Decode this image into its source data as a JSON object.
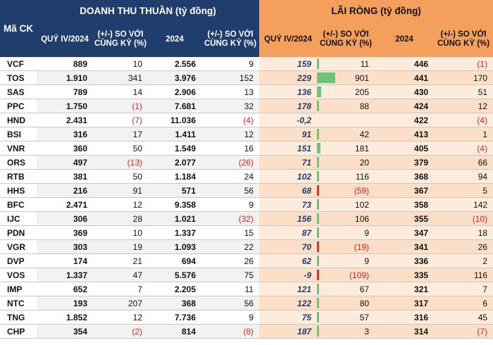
{
  "header": {
    "ticker_label": "Mã CK",
    "revenue_group": "DOANH THU THUẦN (tỷ đồng)",
    "profit_group": "LÃI RÒNG (tỷ đồng)",
    "columns": {
      "q4": "QUÝ IV/2024",
      "change_q4": "(+/-) SO VỚI CÙNG KỲ (%)",
      "year": "2024",
      "change_year": "(+/-) SO VỚI CÙNG KỲ (%)"
    }
  },
  "rows": [
    {
      "ticker": "VCF",
      "rev_q4": "889",
      "rev_q4_chg": "10",
      "rev_y": "2.556",
      "rev_y_chg": "9",
      "np_q4": "159",
      "np_q4_chg": "11",
      "np_y": "446",
      "np_y_chg": "(1)"
    },
    {
      "ticker": "TOS",
      "rev_q4": "1.910",
      "rev_q4_chg": "341",
      "rev_y": "3.976",
      "rev_y_chg": "152",
      "np_q4": "229",
      "np_q4_chg": "901",
      "np_y": "441",
      "np_y_chg": "170"
    },
    {
      "ticker": "SAS",
      "rev_q4": "789",
      "rev_q4_chg": "14",
      "rev_y": "2.906",
      "rev_y_chg": "13",
      "np_q4": "136",
      "np_q4_chg": "205",
      "np_y": "430",
      "np_y_chg": "51"
    },
    {
      "ticker": "PPC",
      "rev_q4": "1.750",
      "rev_q4_chg": "(1)",
      "rev_y": "7.681",
      "rev_y_chg": "32",
      "np_q4": "178",
      "np_q4_chg": "88",
      "np_y": "424",
      "np_y_chg": "12"
    },
    {
      "ticker": "HND",
      "rev_q4": "2.431",
      "rev_q4_chg": "(7)",
      "rev_y": "11.036",
      "rev_y_chg": "(4)",
      "np_q4": "-0,2",
      "np_q4_chg": "",
      "np_y": "422",
      "np_y_chg": "(4)"
    },
    {
      "ticker": "BSI",
      "rev_q4": "316",
      "rev_q4_chg": "17",
      "rev_y": "1.411",
      "rev_y_chg": "12",
      "np_q4": "91",
      "np_q4_chg": "42",
      "np_y": "413",
      "np_y_chg": "1"
    },
    {
      "ticker": "VNR",
      "rev_q4": "360",
      "rev_q4_chg": "50",
      "rev_y": "1.549",
      "rev_y_chg": "16",
      "np_q4": "151",
      "np_q4_chg": "181",
      "np_y": "405",
      "np_y_chg": "(4)"
    },
    {
      "ticker": "ORS",
      "rev_q4": "497",
      "rev_q4_chg": "(13)",
      "rev_y": "2.077",
      "rev_y_chg": "(26)",
      "np_q4": "71",
      "np_q4_chg": "20",
      "np_y": "379",
      "np_y_chg": "66"
    },
    {
      "ticker": "RTB",
      "rev_q4": "381",
      "rev_q4_chg": "50",
      "rev_y": "1.184",
      "rev_y_chg": "24",
      "np_q4": "102",
      "np_q4_chg": "116",
      "np_y": "368",
      "np_y_chg": "94"
    },
    {
      "ticker": "HHS",
      "rev_q4": "216",
      "rev_q4_chg": "91",
      "rev_y": "571",
      "rev_y_chg": "56",
      "np_q4": "68",
      "np_q4_chg": "(59)",
      "np_y": "367",
      "np_y_chg": "5"
    },
    {
      "ticker": "BFC",
      "rev_q4": "2.471",
      "rev_q4_chg": "12",
      "rev_y": "9.358",
      "rev_y_chg": "9",
      "np_q4": "73",
      "np_q4_chg": "102",
      "np_y": "358",
      "np_y_chg": "142"
    },
    {
      "ticker": "IJC",
      "rev_q4": "306",
      "rev_q4_chg": "28",
      "rev_y": "1.021",
      "rev_y_chg": "(32)",
      "np_q4": "156",
      "np_q4_chg": "106",
      "np_y": "355",
      "np_y_chg": "(10)"
    },
    {
      "ticker": "PDN",
      "rev_q4": "369",
      "rev_q4_chg": "10",
      "rev_y": "1.337",
      "rev_y_chg": "15",
      "np_q4": "87",
      "np_q4_chg": "9",
      "np_y": "347",
      "np_y_chg": "18"
    },
    {
      "ticker": "VGR",
      "rev_q4": "303",
      "rev_q4_chg": "19",
      "rev_y": "1.093",
      "rev_y_chg": "22",
      "np_q4": "70",
      "np_q4_chg": "(19)",
      "np_y": "341",
      "np_y_chg": "26"
    },
    {
      "ticker": "DVP",
      "rev_q4": "174",
      "rev_q4_chg": "21",
      "rev_y": "694",
      "rev_y_chg": "26",
      "np_q4": "62",
      "np_q4_chg": "9",
      "np_y": "336",
      "np_y_chg": "2"
    },
    {
      "ticker": "VOS",
      "rev_q4": "1.337",
      "rev_q4_chg": "47",
      "rev_y": "5.576",
      "rev_y_chg": "75",
      "np_q4": "-9",
      "np_q4_chg": "(109)",
      "np_y": "335",
      "np_y_chg": "116"
    },
    {
      "ticker": "IMP",
      "rev_q4": "652",
      "rev_q4_chg": "7",
      "rev_y": "2.205",
      "rev_y_chg": "11",
      "np_q4": "121",
      "np_q4_chg": "67",
      "np_y": "321",
      "np_y_chg": "7"
    },
    {
      "ticker": "NTC",
      "rev_q4": "193",
      "rev_q4_chg": "207",
      "rev_y": "368",
      "rev_y_chg": "56",
      "np_q4": "122",
      "np_q4_chg": "80",
      "np_y": "317",
      "np_y_chg": "6"
    },
    {
      "ticker": "TNG",
      "rev_q4": "1.852",
      "rev_q4_chg": "12",
      "rev_y": "7.736",
      "rev_y_chg": "9",
      "np_q4": "75",
      "np_q4_chg": "57",
      "np_y": "316",
      "np_y_chg": "45"
    },
    {
      "ticker": "CHP",
      "rev_q4": "354",
      "rev_q4_chg": "(2)",
      "rev_y": "814",
      "rev_y_chg": "(8)",
      "np_q4": "187",
      "np_q4_chg": "3",
      "np_y": "314",
      "np_y_chg": "(7)"
    }
  ],
  "colors": {
    "header_blue": "#1f3e6e",
    "header_orange": "#f4a05c",
    "negative": "#e01f1f",
    "bar_positive": "#6cc47b",
    "bar_negative": "#e23030"
  }
}
